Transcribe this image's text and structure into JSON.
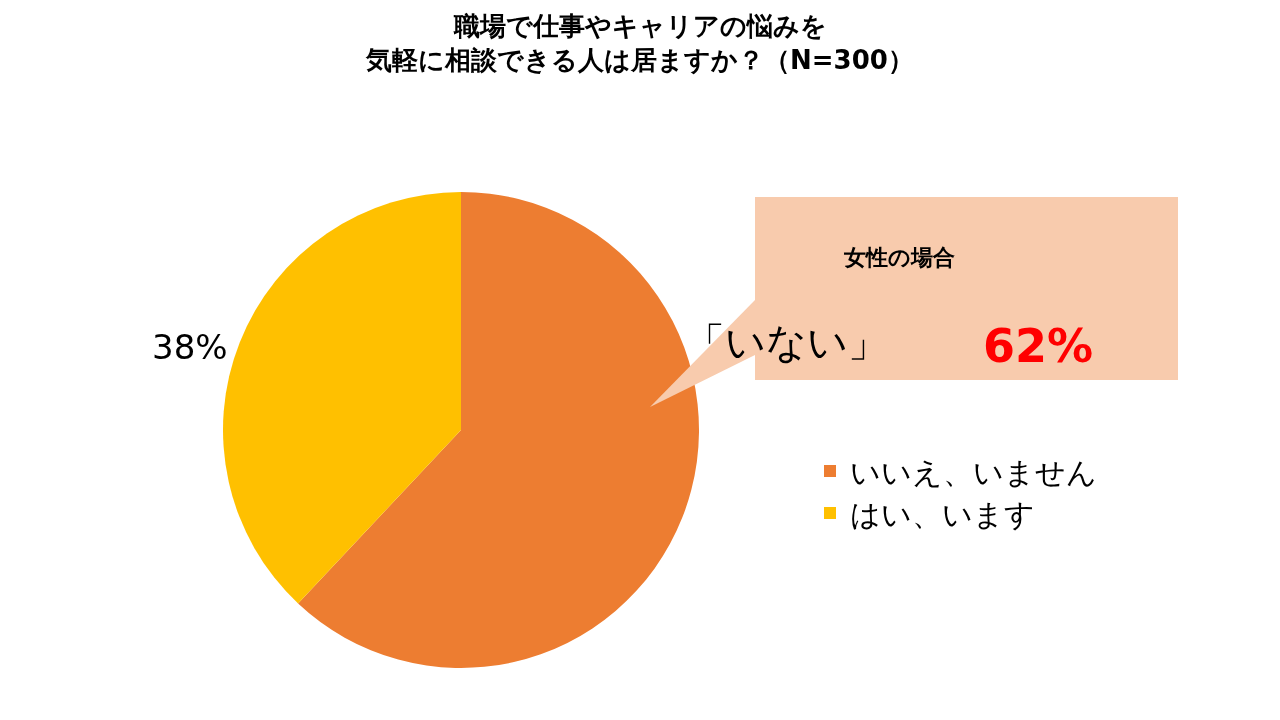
{
  "chart_data": {
    "type": "pie",
    "title": "職場で仕事やキャリアの悩みを気軽に相談できる人は居ますか？（N=300）",
    "categories": [
      "いいえ、いません",
      "はい、います"
    ],
    "values": [
      62,
      38
    ],
    "colors": [
      "#ed7d31",
      "#ffc000"
    ],
    "value_labels": [
      null,
      "38%"
    ],
    "annotations": [
      "女性の場合",
      "「いない」",
      "62%"
    ],
    "legend": "right"
  }
}
